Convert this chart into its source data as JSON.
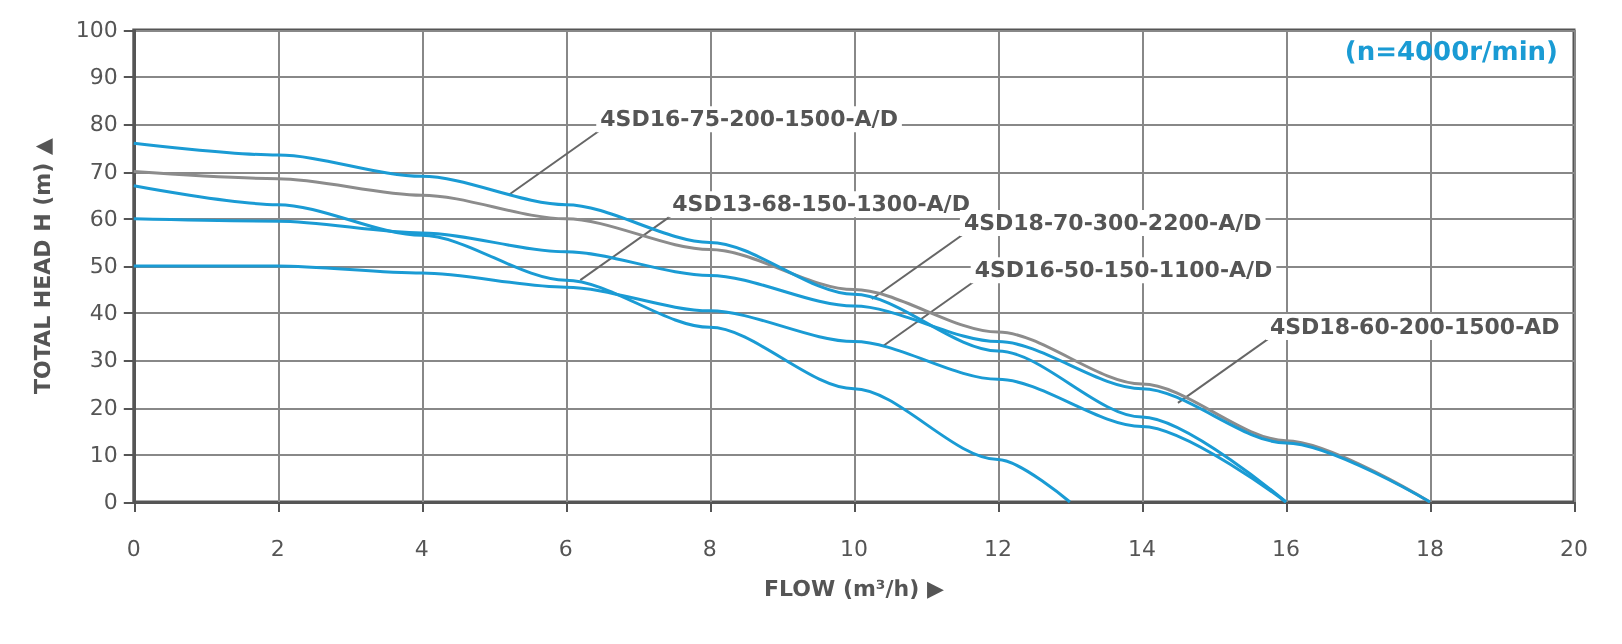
{
  "chart_data": {
    "type": "line",
    "xlabel": "FLOW (m³/h) ▶",
    "ylabel": "TOTAL HEAD H (m) ▲",
    "xlim": [
      0,
      20
    ],
    "xticks": [
      0,
      2,
      4,
      6,
      8,
      10,
      12,
      14,
      16,
      18,
      20
    ],
    "ylim": [
      0,
      100
    ],
    "yticks": [
      0,
      10,
      20,
      30,
      40,
      50,
      60,
      70,
      80,
      90,
      100
    ],
    "grid": true,
    "marker": "none",
    "line_style": "solid",
    "series": [
      {
        "color": "#8c8c8c",
        "x": [
          0,
          2,
          4,
          6,
          8,
          10,
          12,
          14,
          16,
          18
        ],
        "values": [
          70,
          68.5,
          65,
          60,
          53.5,
          45,
          36,
          25,
          13,
          0
        ]
      },
      {
        "color": "#1a9bd4",
        "x": [
          0,
          2,
          4,
          6,
          8,
          10,
          12,
          14,
          16
        ],
        "values": [
          76,
          73.5,
          69,
          63,
          55,
          44,
          32,
          18,
          0
        ]
      },
      {
        "color": "#1a9bd4",
        "x": [
          0,
          2,
          4,
          6,
          8,
          10,
          12,
          14,
          16,
          18
        ],
        "values": [
          60,
          59.5,
          57,
          53,
          48,
          41.5,
          34,
          24,
          12.5,
          0
        ]
      },
      {
        "color": "#1a9bd4",
        "x": [
          0,
          2,
          4,
          6,
          8,
          10,
          12,
          13
        ],
        "values": [
          67,
          63,
          56.5,
          47,
          37,
          24,
          9,
          0
        ]
      },
      {
        "color": "#1a9bd4",
        "x": [
          0,
          2,
          4,
          6,
          8,
          10,
          12,
          14,
          16
        ],
        "values": [
          50,
          50,
          48.5,
          45.5,
          40.5,
          34,
          26,
          16,
          0
        ]
      }
    ],
    "annotations": [
      {
        "text": "4SD16-75-200-1500-A/D",
        "x": 5.2,
        "y": 65
      },
      {
        "text": "4SD13-68-150-1300-A/D",
        "x": 6.2,
        "y": 47
      },
      {
        "text": "4SD18-70-300-2200-A/D",
        "x": 10.25,
        "y": 43
      },
      {
        "text": "4SD16-50-150-1100-A/D",
        "x": 10.4,
        "y": 33
      },
      {
        "text": "4SD18-60-200-1500-AD",
        "x": 14.5,
        "y": 21
      },
      "(n=4000r/min)"
    ]
  }
}
